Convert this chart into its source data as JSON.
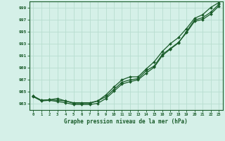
{
  "hours": [
    0,
    1,
    2,
    3,
    4,
    5,
    6,
    7,
    8,
    9,
    10,
    11,
    12,
    13,
    14,
    15,
    16,
    17,
    18,
    19,
    20,
    21,
    22,
    23
  ],
  "line1": [
    984.3,
    983.6,
    983.7,
    983.6,
    983.5,
    983.1,
    983.1,
    983.1,
    983.5,
    984.2,
    985.4,
    986.6,
    987.0,
    987.2,
    988.5,
    989.3,
    991.2,
    992.2,
    993.2,
    994.8,
    996.7,
    997.0,
    997.9,
    999.2
  ],
  "line2": [
    984.2,
    983.5,
    983.6,
    983.4,
    983.2,
    982.9,
    982.9,
    982.9,
    983.1,
    983.9,
    985.1,
    986.3,
    986.7,
    987.0,
    988.1,
    989.1,
    991.0,
    992.1,
    993.1,
    995.0,
    996.9,
    997.3,
    998.2,
    999.5
  ],
  "line3": [
    984.3,
    983.6,
    983.7,
    983.9,
    983.5,
    983.2,
    983.2,
    983.2,
    983.5,
    984.5,
    985.8,
    987.0,
    987.5,
    987.5,
    988.8,
    990.0,
    991.7,
    993.0,
    994.0,
    995.5,
    997.2,
    997.8,
    999.0,
    999.8
  ],
  "bg_color": "#d5f0e8",
  "grid_color": "#b8ddd0",
  "line_color": "#1a5c2a",
  "xlabel": "Graphe pression niveau de la mer (hPa)",
  "ylim": [
    982.0,
    1000.0
  ],
  "yticks": [
    983,
    985,
    987,
    989,
    991,
    993,
    995,
    997,
    999
  ],
  "xticks": [
    0,
    1,
    2,
    3,
    4,
    5,
    6,
    7,
    8,
    9,
    10,
    11,
    12,
    13,
    14,
    15,
    16,
    17,
    18,
    19,
    20,
    21,
    22,
    23
  ]
}
